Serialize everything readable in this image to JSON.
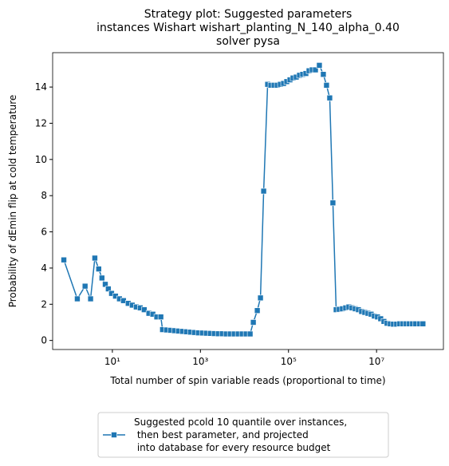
{
  "chart_data": {
    "type": "line",
    "title": [
      "Strategy plot: Suggested parameters",
      "instances Wishart wishart_planting_N_140_alpha_0.40",
      "solver pysa"
    ],
    "xlabel": "Total number of spin variable reads (proportional to time)",
    "ylabel": "Probability of dEmin flip at cold temperature",
    "xscale": "log",
    "xlim": [
      0.44,
      330000000
    ],
    "ylim": [
      -0.5,
      15.9
    ],
    "xticks": [
      {
        "value": 10,
        "label": "10¹"
      },
      {
        "value": 1000,
        "label": "10³"
      },
      {
        "value": 100000,
        "label": "10⁵"
      },
      {
        "value": 10000000,
        "label": "10⁷"
      }
    ],
    "yticks": [
      0,
      2,
      4,
      6,
      8,
      10,
      12,
      14
    ],
    "legend": "lower center",
    "series": [
      {
        "name": "Suggested pcold 10 quantile over instances,\n then best parameter, and projected\n into database for every resource budget",
        "color": "#1f77b4",
        "x": [
          0.79,
          1.6,
          2.4,
          3.2,
          4.0,
          4.9,
          5.8,
          6.9,
          8.1,
          9.6,
          11.8,
          14.5,
          17.9,
          22.9,
          28.3,
          34.9,
          42.9,
          52.9,
          67.5,
          83,
          102,
          126,
          138,
          170,
          209,
          257,
          317,
          390,
          481,
          592,
          729,
          898,
          1105,
          1361,
          1676,
          2064,
          2541,
          3129,
          3853,
          4745,
          5843,
          7195,
          8860,
          10910,
          13440,
          15880,
          19550,
          23080,
          27290,
          33590,
          39700,
          46900,
          55400,
          65400,
          77300,
          91300,
          108000,
          127000,
          150000,
          178000,
          210000,
          248000,
          293000,
          346000,
          409000,
          503000,
          619000,
          731000,
          864000,
          1020000,
          1210000,
          1420000,
          1680000,
          1990000,
          2350000,
          2770000,
          3280000,
          3870000,
          4570000,
          5400000,
          6380000,
          7540000,
          8900000,
          10500000,
          12400000,
          14700000,
          17300000,
          20500000,
          24200000,
          28600000,
          33700000,
          39800000,
          47100000,
          55600000,
          65700000,
          77600000,
          95500000,
          113000000
        ],
        "values": [
          4.45,
          2.3,
          3.0,
          2.3,
          4.55,
          3.95,
          3.45,
          3.1,
          2.85,
          2.6,
          2.45,
          2.3,
          2.2,
          2.05,
          1.95,
          1.85,
          1.8,
          1.7,
          1.5,
          1.45,
          1.3,
          1.3,
          0.6,
          0.58,
          0.56,
          0.54,
          0.52,
          0.5,
          0.48,
          0.46,
          0.44,
          0.42,
          0.41,
          0.4,
          0.39,
          0.38,
          0.37,
          0.37,
          0.36,
          0.36,
          0.36,
          0.36,
          0.36,
          0.36,
          0.36,
          1.0,
          1.65,
          2.35,
          8.25,
          14.15,
          14.1,
          14.1,
          14.1,
          14.15,
          14.2,
          14.3,
          14.4,
          14.5,
          14.55,
          14.65,
          14.7,
          14.75,
          14.9,
          14.95,
          14.95,
          15.2,
          14.7,
          14.1,
          13.4,
          7.6,
          1.7,
          1.72,
          1.75,
          1.8,
          1.85,
          1.8,
          1.75,
          1.7,
          1.6,
          1.55,
          1.5,
          1.45,
          1.35,
          1.3,
          1.2,
          1.05,
          0.95,
          0.92,
          0.9,
          0.9,
          0.92,
          0.92,
          0.92,
          0.92,
          0.92,
          0.92,
          0.92,
          0.92
        ]
      }
    ]
  }
}
